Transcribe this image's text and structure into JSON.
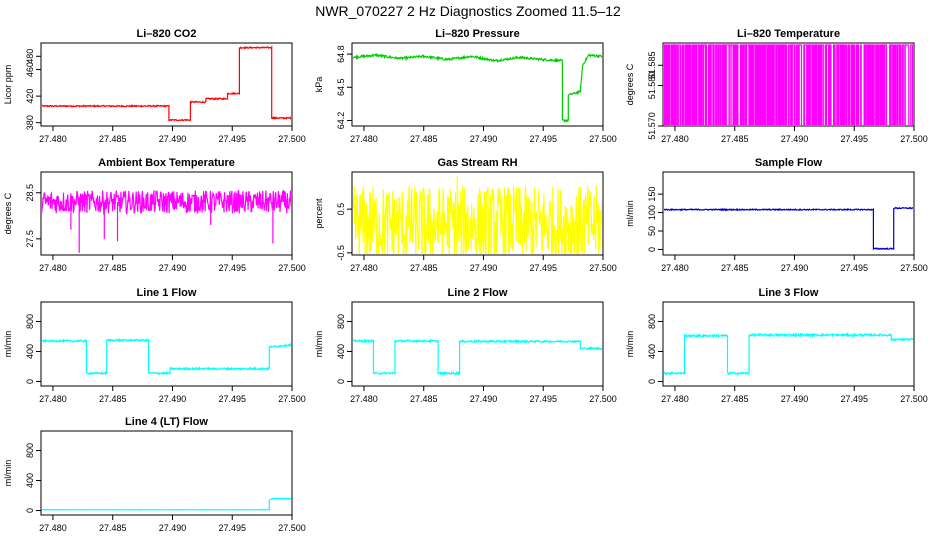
{
  "figure": {
    "title": "NWR_070227  2 Hz Diagnostics Zoomed 11.5–12"
  },
  "chart_data": [
    {
      "type": "line",
      "title": "Li–820 CO2",
      "xlabel": "",
      "ylabel": "Licor ppm",
      "color": "#ff0000",
      "xlim": [
        27.479,
        27.5
      ],
      "ylim": [
        375,
        500
      ],
      "yticks": [
        380,
        420,
        460,
        480
      ],
      "xticks": [
        "27.480",
        "27.485",
        "27.490",
        "27.495",
        "27.500"
      ],
      "x": [
        27.479,
        27.4897,
        27.4897,
        27.4915,
        27.4915,
        27.4928,
        27.4928,
        27.4946,
        27.4946,
        27.4956,
        27.4956,
        27.4983,
        27.4983,
        27.4985,
        27.5
      ],
      "y": [
        405,
        405,
        384,
        384,
        411,
        411,
        416,
        416,
        424,
        424,
        493,
        493,
        387,
        387,
        387
      ],
      "noise": 1
    },
    {
      "type": "line",
      "title": "Li–820 Pressure",
      "xlabel": "",
      "ylabel": "kPa",
      "color": "#00cc00",
      "xlim": [
        27.479,
        27.5
      ],
      "ylim": [
        64.15,
        64.9
      ],
      "yticks": [
        64.2,
        64.5,
        64.8
      ],
      "xticks": [
        "27.480",
        "27.485",
        "27.490",
        "27.495",
        "27.500"
      ],
      "x": [
        27.479,
        27.481,
        27.483,
        27.485,
        27.487,
        27.489,
        27.491,
        27.493,
        27.495,
        27.4966,
        27.4966,
        27.4971,
        27.4971,
        27.4981,
        27.4983,
        27.4988,
        27.5
      ],
      "y": [
        64.77,
        64.79,
        64.76,
        64.78,
        64.75,
        64.78,
        64.74,
        64.77,
        64.75,
        64.74,
        64.2,
        64.2,
        64.43,
        64.46,
        64.7,
        64.79,
        64.78
      ],
      "noise": 0.01
    },
    {
      "type": "line",
      "title": "Li–820 Temperature",
      "xlabel": "",
      "ylabel": "degrees C",
      "color": "#ff00ff",
      "xlim": [
        27.479,
        27.5
      ],
      "ylim": [
        51.57,
        51.5905
      ],
      "yticks": [
        51.57,
        51.58,
        51.585
      ],
      "ytick_labels": [
        "51.570",
        "51.580",
        "51.585"
      ],
      "xticks": [
        "27.480",
        "27.485",
        "27.490",
        "27.495",
        "27.500"
      ],
      "x": [
        27.479,
        27.5
      ],
      "y": [
        51.59,
        51.59
      ],
      "style": "toggle",
      "alt": 51.57
    },
    {
      "type": "line",
      "title": "Ambient Box Temperature",
      "xlabel": "",
      "ylabel": "degrees C",
      "color": "#ff00ff",
      "xlim": [
        27.479,
        27.5
      ],
      "ylim": [
        27.15,
        28.95
      ],
      "yticks": [
        27.5,
        28.5
      ],
      "xticks": [
        "27.480",
        "27.485",
        "27.490",
        "27.495",
        "27.500"
      ],
      "x": [
        27.479,
        27.5
      ],
      "y": [
        28.3,
        28.3
      ],
      "noise": 0.25,
      "spikes": [
        [
          27.4822,
          27.2
        ],
        [
          27.4843,
          27.5
        ],
        [
          27.4854,
          27.45
        ],
        [
          27.4984,
          27.4
        ],
        [
          27.4815,
          27.7
        ],
        [
          27.4932,
          27.8
        ]
      ]
    },
    {
      "type": "line",
      "title": "Gas Stream RH",
      "xlabel": "",
      "ylabel": "percent",
      "color": "#ffff00",
      "xlim": [
        27.479,
        27.5
      ],
      "ylim": [
        -0.55,
        1.35
      ],
      "yticks": [
        -0.5,
        0.5
      ],
      "xticks": [
        "27.480",
        "27.485",
        "27.490",
        "27.495",
        "27.500"
      ],
      "x": [
        27.479,
        27.5
      ],
      "y": [
        0.15,
        0.15
      ],
      "noise": 0.9,
      "spikes": [
        [
          27.4878,
          1.25
        ],
        [
          27.4838,
          1.05
        ],
        [
          27.4905,
          -0.5
        ]
      ]
    },
    {
      "type": "line",
      "title": "Sample Flow",
      "xlabel": "",
      "ylabel": "ml/min",
      "color": "#0000cc",
      "xlim": [
        27.479,
        27.5
      ],
      "ylim": [
        -15,
        210
      ],
      "yticks": [
        0,
        50,
        100,
        150
      ],
      "xticks": [
        "27.480",
        "27.485",
        "27.490",
        "27.495",
        "27.500"
      ],
      "x": [
        27.479,
        27.4966,
        27.4966,
        27.4983,
        27.4983,
        27.5
      ],
      "y": [
        108,
        108,
        2,
        2,
        112,
        112
      ],
      "noise": 1.5
    },
    {
      "type": "line",
      "title": "Line 1 Flow",
      "xlabel": "",
      "ylabel": "ml/min",
      "color": "#00ffff",
      "xlim": [
        27.479,
        27.5
      ],
      "ylim": [
        -60,
        1060
      ],
      "yticks": [
        0,
        400,
        800
      ],
      "xticks": [
        "27.480",
        "27.485",
        "27.490",
        "27.495",
        "27.500"
      ],
      "x": [
        27.479,
        27.4828,
        27.4828,
        27.4845,
        27.4845,
        27.488,
        27.488,
        27.4898,
        27.4898,
        27.4981,
        27.4981,
        27.5
      ],
      "y": [
        540,
        540,
        110,
        110,
        550,
        550,
        110,
        110,
        170,
        170,
        460,
        490
      ],
      "noise": 12
    },
    {
      "type": "line",
      "title": "Line 2 Flow",
      "xlabel": "",
      "ylabel": "ml/min",
      "color": "#00ffff",
      "xlim": [
        27.479,
        27.5
      ],
      "ylim": [
        -60,
        1060
      ],
      "yticks": [
        0,
        400,
        800
      ],
      "xticks": [
        "27.480",
        "27.485",
        "27.490",
        "27.495",
        "27.500"
      ],
      "x": [
        27.479,
        27.4808,
        27.4808,
        27.4826,
        27.4826,
        27.4862,
        27.4862,
        27.488,
        27.488,
        27.4981,
        27.4981,
        27.5
      ],
      "y": [
        540,
        540,
        110,
        110,
        540,
        540,
        110,
        110,
        535,
        535,
        440,
        440
      ],
      "noise": 12
    },
    {
      "type": "line",
      "title": "Line 3 Flow",
      "xlabel": "",
      "ylabel": "ml/min",
      "color": "#00ffff",
      "xlim": [
        27.479,
        27.5
      ],
      "ylim": [
        -60,
        1060
      ],
      "yticks": [
        0,
        400,
        800
      ],
      "xticks": [
        "27.480",
        "27.485",
        "27.490",
        "27.495",
        "27.500"
      ],
      "x": [
        27.479,
        27.4808,
        27.4808,
        27.4844,
        27.4844,
        27.4862,
        27.4862,
        27.4981,
        27.4981,
        27.5
      ],
      "y": [
        110,
        110,
        610,
        610,
        110,
        110,
        620,
        620,
        560,
        560
      ],
      "noise": 14
    },
    {
      "type": "line",
      "title": "Line 4 (LT) Flow",
      "xlabel": "",
      "ylabel": "ml/min",
      "color": "#00ffff",
      "xlim": [
        27.479,
        27.5
      ],
      "ylim": [
        -60,
        1060
      ],
      "yticks": [
        0,
        400,
        800
      ],
      "xticks": [
        "27.480",
        "27.485",
        "27.490",
        "27.495",
        "27.500"
      ],
      "x": [
        27.479,
        27.4981,
        27.4981,
        27.4984,
        27.5
      ],
      "y": [
        10,
        10,
        140,
        160,
        160
      ],
      "noise": 2
    }
  ]
}
